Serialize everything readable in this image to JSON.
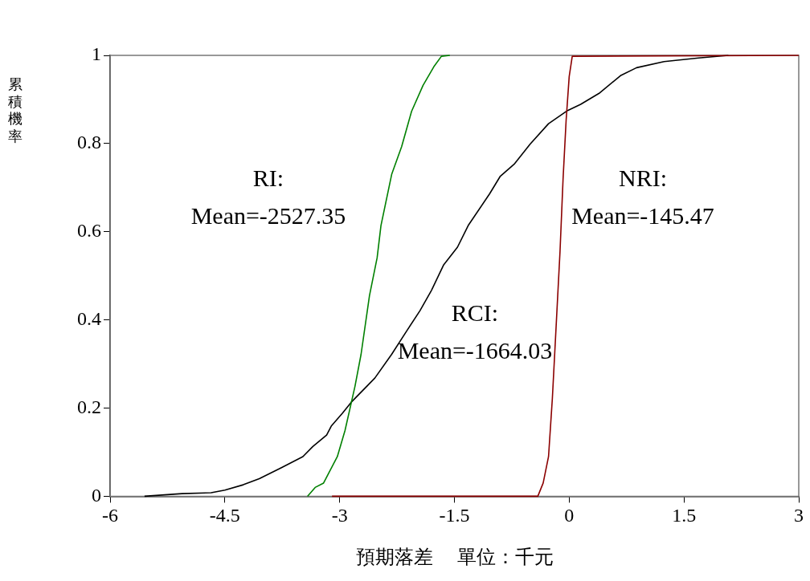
{
  "chart_data": {
    "type": "line",
    "xlabel": "預期落差     單位：千元",
    "ylabel": "累積機率",
    "xlim": [
      -6,
      3
    ],
    "xticks": [
      -6,
      -4.5,
      -3,
      -1.5,
      0,
      1.5,
      3
    ],
    "ylim": [
      0,
      1
    ],
    "yticks": [
      0,
      0.2,
      0.4,
      0.6,
      0.8,
      1
    ],
    "grid": false,
    "legend": false,
    "marker": "none",
    "line_style": "solid",
    "series": [
      {
        "color": "#008000",
        "x": [
          -3.42,
          -3.32,
          -3.21,
          -3.03,
          -2.93,
          -2.8,
          -2.72,
          -2.61,
          -2.51,
          -2.46,
          -2.32,
          -2.19,
          -2.06,
          -1.91,
          -1.77,
          -1.67,
          -1.56
        ],
        "values": [
          0,
          0.02,
          0.03,
          0.09,
          0.149,
          0.249,
          0.322,
          0.455,
          0.541,
          0.614,
          0.73,
          0.793,
          0.873,
          0.932,
          0.974,
          0.998,
          1
        ]
      },
      {
        "color": "#8b0000",
        "x": [
          -3.1,
          -0.41,
          -0.34,
          -0.27,
          -0.22,
          -0.17,
          -0.12,
          -0.08,
          -0.04,
          0,
          0.04,
          3
        ],
        "values": [
          0,
          0,
          0.03,
          0.09,
          0.222,
          0.388,
          0.555,
          0.72,
          0.853,
          0.952,
          0.998,
          1
        ]
      },
      {
        "color": "#000000",
        "x": [
          -5.55,
          -5.06,
          -4.68,
          -4.5,
          -4.26,
          -4.05,
          -3.77,
          -3.48,
          -3.35,
          -3.17,
          -3.11,
          -2.96,
          -2.85,
          -2.54,
          -2.32,
          -2.12,
          -1.95,
          -1.8,
          -1.64,
          -1.46,
          -1.32,
          -1.04,
          -0.9,
          -0.72,
          -0.51,
          -0.27,
          -0.02,
          0.15,
          0.4,
          0.67,
          0.88,
          1.24,
          1.69,
          2.08
        ],
        "values": [
          0,
          0.006,
          0.008,
          0.014,
          0.026,
          0.04,
          0.064,
          0.09,
          0.113,
          0.139,
          0.159,
          0.189,
          0.213,
          0.268,
          0.322,
          0.376,
          0.421,
          0.467,
          0.525,
          0.565,
          0.614,
          0.686,
          0.726,
          0.753,
          0.799,
          0.845,
          0.875,
          0.889,
          0.915,
          0.954,
          0.972,
          0.986,
          0.994,
          1
        ]
      }
    ],
    "annotations": [
      "RI:\nMean=-2527.35",
      "RCI:\nMean=-1664.03",
      "NRI:\nMean=-145.47"
    ]
  }
}
